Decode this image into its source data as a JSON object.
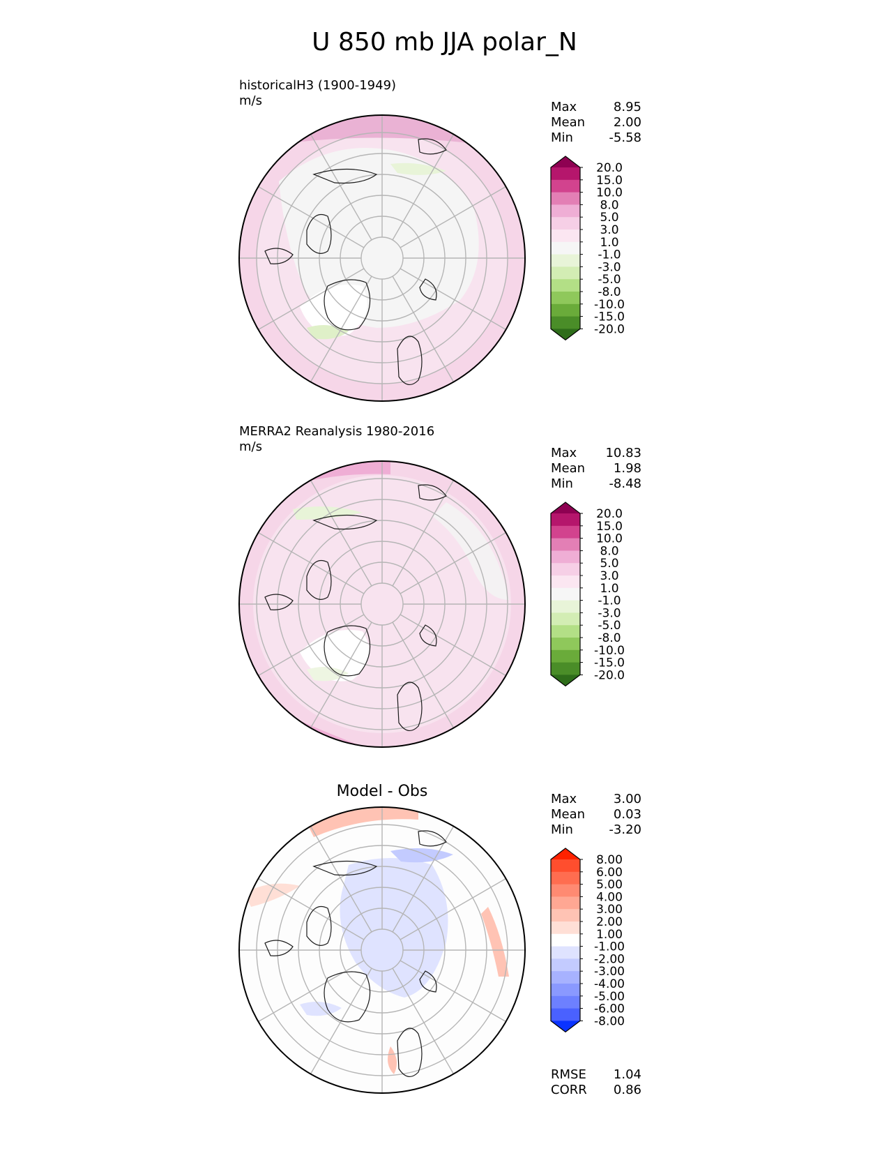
{
  "title": "U 850 mb JJA polar_N",
  "panels": [
    {
      "label_line1": "historicalH3 (1900-1949)",
      "label_line2": "m/s",
      "stats": {
        "max_label": "Max",
        "max": "8.95",
        "mean_label": "Mean",
        "mean": "2.00",
        "min_label": "Min",
        "min": "-5.58"
      }
    },
    {
      "label_line1": "MERRA2 Reanalysis 1980-2016",
      "label_line2": "m/s",
      "stats": {
        "max_label": "Max",
        "max": "10.83",
        "mean_label": "Mean",
        "mean": "1.98",
        "min_label": "Min",
        "min": "-8.48"
      }
    },
    {
      "title": "Model - Obs",
      "stats": {
        "max_label": "Max",
        "max": "3.00",
        "mean_label": "Mean",
        "mean": "0.03",
        "min_label": "Min",
        "min": "-3.20"
      },
      "metrics": {
        "rmse_label": "RMSE",
        "rmse": "1.04",
        "corr_label": "CORR",
        "corr": "0.86"
      }
    }
  ],
  "colorbars": {
    "field": {
      "levels": [
        "20.0",
        "15.0",
        "10.0",
        "8.0",
        "5.0",
        "3.0",
        "1.0",
        "-1.0",
        "-3.0",
        "-5.0",
        "-8.0",
        "-10.0",
        "-15.0",
        "-20.0"
      ],
      "colors": [
        "#8e0152",
        "#b5166c",
        "#d2438e",
        "#e37fb5",
        "#efaed5",
        "#f6cfe6",
        "#fbe6f1",
        "#f6f6f6",
        "#e8f4d8",
        "#d3edb4",
        "#b3df86",
        "#8fc85b",
        "#6aab3a",
        "#4a8d28",
        "#2e6d1a"
      ]
    },
    "diff": {
      "levels": [
        "8.00",
        "6.00",
        "5.00",
        "4.00",
        "3.00",
        "2.00",
        "1.00",
        "-1.00",
        "-2.00",
        "-3.00",
        "-4.00",
        "-5.00",
        "-6.00",
        "-8.00"
      ],
      "colors": [
        "#ff2200",
        "#ff4e2e",
        "#ff6d50",
        "#ff8a72",
        "#ffa793",
        "#ffc3b4",
        "#ffdfd6",
        "#ffffff",
        "#dfe3ff",
        "#c3cbff",
        "#a7b2ff",
        "#8a99ff",
        "#6d80ff",
        "#4a61ff",
        "#0a33ff"
      ]
    }
  }
}
